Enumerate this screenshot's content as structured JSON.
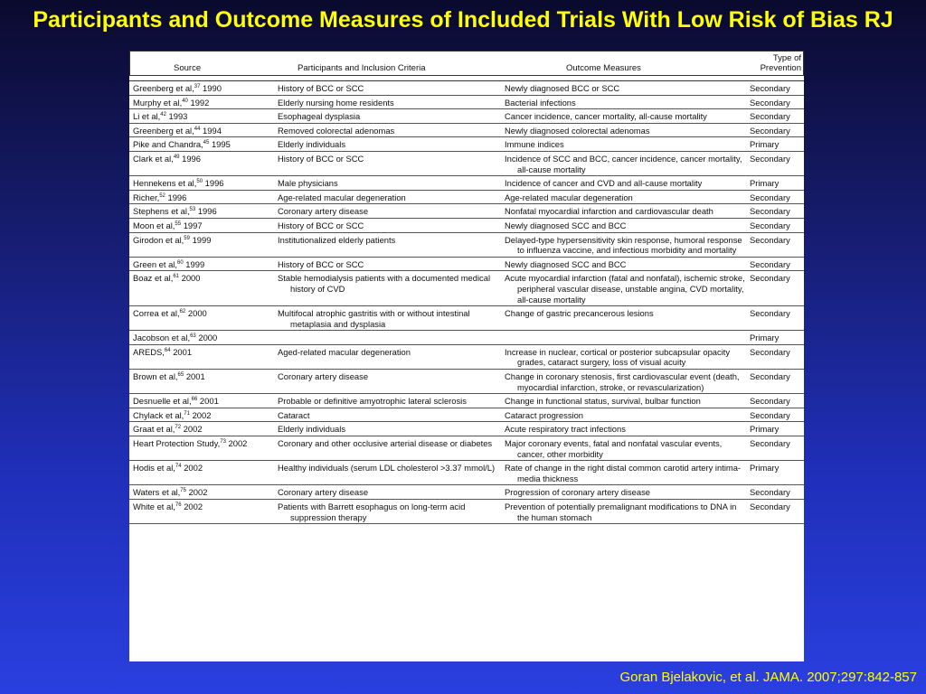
{
  "slide": {
    "title": "Participants and Outcome Measures of Included Trials With Low Risk of Bias RJ",
    "citation": "Goran Bjelakovic, et al. JAMA. 2007;297:842-857"
  },
  "table": {
    "headers": {
      "source": "Source",
      "participants": "Participants and Inclusion Criteria",
      "outcomes": "Outcome Measures",
      "prevention_line1": "Type of",
      "prevention_line2": "Prevention"
    },
    "rows": [
      {
        "author": "Greenberg et al,",
        "ref": "37",
        "year": "1990",
        "participants": "History of BCC or SCC",
        "outcomes": "Newly diagnosed BCC or SCC",
        "prevention": "Secondary"
      },
      {
        "author": "Murphy et al,",
        "ref": "40",
        "year": "1992",
        "participants": "Elderly nursing home residents",
        "outcomes": "Bacterial infections",
        "prevention": "Secondary"
      },
      {
        "author": "Li et al,",
        "ref": "42",
        "year": "1993",
        "participants": "Esophageal dysplasia",
        "outcomes": "Cancer incidence, cancer mortality, all-cause mortality",
        "prevention": "Secondary"
      },
      {
        "author": "Greenberg et al,",
        "ref": "44",
        "year": "1994",
        "participants": "Removed colorectal adenomas",
        "outcomes": "Newly diagnosed colorectal adenomas",
        "prevention": "Secondary"
      },
      {
        "author": "Pike and Chandra,",
        "ref": "45",
        "year": "1995",
        "participants": "Elderly individuals",
        "outcomes": "Immune indices",
        "prevention": "Primary"
      },
      {
        "author": "Clark et al,",
        "ref": "49",
        "year": "1996",
        "participants": "History of BCC or SCC",
        "outcomes": "Incidence of SCC and BCC, cancer incidence, cancer mortality, all-cause mortality",
        "prevention": "Secondary"
      },
      {
        "author": "Hennekens et al,",
        "ref": "50",
        "year": "1996",
        "participants": "Male physicians",
        "outcomes": "Incidence of cancer and CVD and all-cause mortality",
        "prevention": "Primary"
      },
      {
        "author": "Richer,",
        "ref": "52",
        "year": "1996",
        "participants": "Age-related macular degeneration",
        "outcomes": "Age-related macular degeneration",
        "prevention": "Secondary"
      },
      {
        "author": "Stephens et al,",
        "ref": "53",
        "year": "1996",
        "participants": "Coronary artery disease",
        "outcomes": "Nonfatal myocardial infarction and cardiovascular death",
        "prevention": "Secondary"
      },
      {
        "author": "Moon et al,",
        "ref": "55",
        "year": "1997",
        "participants": "History of BCC or SCC",
        "outcomes": "Newly diagnosed SCC and BCC",
        "prevention": "Secondary"
      },
      {
        "author": "Girodon et al,",
        "ref": "59",
        "year": "1999",
        "participants": "Institutionalized elderly patients",
        "outcomes": "Delayed-type hypersensitivity skin response, humoral response to influenza vaccine, and infectious morbidity and mortality",
        "prevention": "Secondary"
      },
      {
        "author": "Green et al,",
        "ref": "60",
        "year": "1999",
        "participants": "History of BCC or SCC",
        "outcomes": "Newly diagnosed SCC and BCC",
        "prevention": "Secondary"
      },
      {
        "author": "Boaz et al,",
        "ref": "61",
        "year": "2000",
        "participants": "Stable hemodialysis patients with a documented medical history of CVD",
        "outcomes": "Acute myocardial infarction (fatal and nonfatal), ischemic stroke, peripheral vascular disease, unstable angina, CVD mortality, all-cause mortality",
        "prevention": "Secondary"
      },
      {
        "author": "Correa et al,",
        "ref": "62",
        "year": "2000",
        "participants": "Multifocal atrophic gastritis with or without intestinal metaplasia and dysplasia",
        "outcomes": "Change of gastric precancerous lesions",
        "prevention": "Secondary"
      },
      {
        "author": "Jacobson et al,",
        "ref": "63",
        "year": "2000",
        "participants": "",
        "outcomes": "",
        "prevention": "Primary"
      },
      {
        "author": "AREDS,",
        "ref": "64",
        "year": "2001",
        "participants": "Aged-related macular degeneration",
        "outcomes": "Increase in nuclear, cortical or posterior subcapsular opacity grades, cataract surgery, loss of visual acuity",
        "prevention": "Secondary"
      },
      {
        "author": "Brown et al,",
        "ref": "65",
        "year": "2001",
        "participants": "Coronary artery disease",
        "outcomes": "Change in coronary stenosis, first cardiovascular event (death, myocardial infarction, stroke, or revascularization)",
        "prevention": "Secondary"
      },
      {
        "author": "Desnuelle et al,",
        "ref": "66",
        "year": "2001",
        "participants": "Probable or definitive amyotrophic lateral sclerosis",
        "outcomes": "Change in functional status, survival, bulbar function",
        "prevention": "Secondary"
      },
      {
        "author": "Chylack et al,",
        "ref": "71",
        "year": "2002",
        "participants": "Cataract",
        "outcomes": "Cataract progression",
        "prevention": "Secondary"
      },
      {
        "author": "Graat et al,",
        "ref": "72",
        "year": "2002",
        "participants": "Elderly individuals",
        "outcomes": "Acute respiratory tract infections",
        "prevention": "Primary"
      },
      {
        "author": "Heart Protection Study,",
        "ref": "73",
        "year": "2002",
        "participants": "Coronary and other occlusive arterial disease or diabetes",
        "outcomes": "Major coronary events, fatal and nonfatal vascular events, cancer, other morbidity",
        "prevention": "Secondary"
      },
      {
        "author": "Hodis et al,",
        "ref": "74",
        "year": "2002",
        "participants": "Healthy individuals (serum LDL cholesterol >3.37 mmol/L)",
        "outcomes": "Rate of change in the right distal common carotid artery intima-media thickness",
        "prevention": "Primary"
      },
      {
        "author": "Waters et al,",
        "ref": "75",
        "year": "2002",
        "participants": "Coronary artery disease",
        "outcomes": "Progression of coronary artery disease",
        "prevention": "Secondary"
      },
      {
        "author": "White et al,",
        "ref": "76",
        "year": "2002",
        "participants": "Patients with Barrett esophagus on long-term acid suppression therapy",
        "outcomes": "Prevention of potentially premalignant modifications to DNA in the human stomach",
        "prevention": "Secondary"
      }
    ]
  }
}
